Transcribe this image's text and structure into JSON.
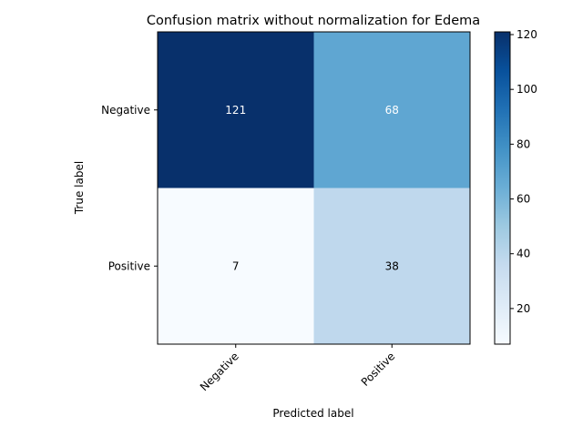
{
  "chart_data": {
    "type": "heatmap",
    "title": "Confusion matrix without normalization for Edema",
    "xlabel": "Predicted label",
    "ylabel": "True label",
    "x_categories": [
      "Negative",
      "Positive"
    ],
    "y_categories": [
      "Negative",
      "Positive"
    ],
    "matrix": [
      [
        121,
        68
      ],
      [
        7,
        38
      ]
    ],
    "colormap": "Blues",
    "color_range": [
      7,
      121
    ],
    "colorbar_ticks": [
      20,
      40,
      60,
      80,
      100,
      120
    ],
    "annotation_colors": {
      "light": "#ffffff",
      "dark": "#000000"
    }
  }
}
